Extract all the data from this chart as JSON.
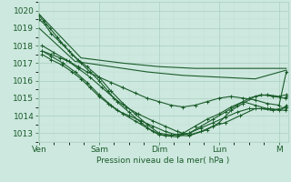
{
  "background_color": "#cde8df",
  "grid_color_major": "#aacfbf",
  "grid_color_minor": "#c0ddd5",
  "line_color": "#1a5c2a",
  "ylabel_text": "Pression niveau de la mer( hPa )",
  "x_ticks_labels": [
    "Ven",
    "Sam",
    "Dim",
    "Lun",
    "M"
  ],
  "x_ticks_pos": [
    0,
    1,
    2,
    3,
    4
  ],
  "ylim": [
    1012.5,
    1020.5
  ],
  "yticks": [
    1013,
    1014,
    1015,
    1016,
    1017,
    1018,
    1019,
    1020
  ],
  "xlim": [
    -0.02,
    4.15
  ],
  "figsize": [
    3.2,
    2.0
  ],
  "dpi": 100,
  "lines": [
    {
      "x": [
        0.0,
        0.7,
        1.4,
        2.0,
        2.6,
        3.2,
        3.8,
        4.12
      ],
      "y": [
        1019.8,
        1017.3,
        1017.0,
        1016.8,
        1016.7,
        1016.7,
        1016.7,
        1016.7
      ],
      "marker": false,
      "lw": 0.8
    },
    {
      "x": [
        0.0,
        0.6,
        1.2,
        1.8,
        2.4,
        3.0,
        3.6,
        4.12
      ],
      "y": [
        1019.0,
        1017.1,
        1016.8,
        1016.5,
        1016.3,
        1016.2,
        1016.1,
        1016.6
      ],
      "marker": false,
      "lw": 0.8
    },
    {
      "x": [
        0.05,
        0.2,
        0.35,
        0.5,
        0.65,
        0.8,
        1.0,
        1.2,
        1.4,
        1.6,
        1.8,
        2.0,
        2.2,
        2.4,
        2.6,
        2.8,
        3.0,
        3.2,
        3.4,
        3.6,
        3.8,
        4.0,
        4.12
      ],
      "y": [
        1017.7,
        1017.5,
        1017.3,
        1017.1,
        1016.8,
        1016.5,
        1016.2,
        1015.9,
        1015.6,
        1015.3,
        1015.0,
        1014.8,
        1014.6,
        1014.5,
        1014.6,
        1014.8,
        1015.0,
        1015.1,
        1015.0,
        1014.9,
        1014.7,
        1014.6,
        1016.5
      ],
      "marker": true,
      "lw": 0.8
    },
    {
      "x": [
        0.05,
        0.2,
        0.38,
        0.55,
        0.7,
        0.85,
        1.0,
        1.15,
        1.3,
        1.5,
        1.7,
        1.9,
        2.1,
        2.3,
        2.5,
        2.7,
        2.9,
        3.1,
        3.3,
        3.5,
        3.7,
        3.9,
        4.1,
        4.12
      ],
      "y": [
        1017.5,
        1017.2,
        1016.9,
        1016.5,
        1016.1,
        1015.6,
        1015.1,
        1014.7,
        1014.3,
        1014.0,
        1013.7,
        1013.4,
        1013.1,
        1012.9,
        1013.0,
        1013.3,
        1013.6,
        1013.9,
        1014.2,
        1014.4,
        1014.4,
        1014.3,
        1014.5,
        1014.6
      ],
      "marker": true,
      "lw": 0.8
    },
    {
      "x": [
        0.05,
        0.2,
        0.4,
        0.6,
        0.8,
        1.0,
        1.2,
        1.4,
        1.6,
        1.8,
        2.0,
        2.2,
        2.4,
        2.6,
        2.8,
        3.0,
        3.2,
        3.4,
        3.6,
        3.8,
        4.0,
        4.12
      ],
      "y": [
        1017.7,
        1017.4,
        1017.0,
        1016.5,
        1015.9,
        1015.2,
        1014.6,
        1014.1,
        1013.7,
        1013.3,
        1012.9,
        1012.85,
        1013.0,
        1013.4,
        1013.8,
        1014.1,
        1014.5,
        1014.8,
        1014.6,
        1014.4,
        1014.3,
        1014.5
      ],
      "marker": true,
      "lw": 0.8
    },
    {
      "x": [
        0.05,
        0.25,
        0.45,
        0.65,
        0.85,
        1.05,
        1.25,
        1.45,
        1.65,
        1.9,
        2.1,
        2.3,
        2.5,
        2.7,
        2.9,
        3.1,
        3.35,
        3.6,
        3.85,
        4.1,
        4.12
      ],
      "y": [
        1018.0,
        1017.6,
        1017.2,
        1016.7,
        1016.2,
        1015.6,
        1015.0,
        1014.5,
        1014.1,
        1013.7,
        1013.4,
        1013.1,
        1012.9,
        1013.1,
        1013.4,
        1013.6,
        1014.0,
        1014.4,
        1014.4,
        1014.3,
        1014.5
      ],
      "marker": true,
      "lw": 0.8
    },
    {
      "x": [
        0.0,
        0.1,
        0.2,
        0.35,
        0.5,
        0.65,
        0.8,
        1.0,
        1.2,
        1.4,
        1.6,
        1.8,
        2.0,
        2.2,
        2.5,
        2.8,
        3.0,
        3.2,
        3.4,
        3.6,
        3.8,
        4.0,
        4.12
      ],
      "y": [
        1019.5,
        1019.2,
        1018.7,
        1018.2,
        1017.7,
        1017.2,
        1016.8,
        1016.2,
        1015.4,
        1014.7,
        1014.1,
        1013.5,
        1013.0,
        1012.9,
        1012.85,
        1013.2,
        1013.6,
        1014.3,
        1014.7,
        1015.1,
        1015.2,
        1015.1,
        1015.2
      ],
      "marker": true,
      "lw": 0.8
    },
    {
      "x": [
        0.0,
        0.08,
        0.18,
        0.3,
        0.42,
        0.55,
        0.7,
        0.85,
        1.0,
        1.15,
        1.3,
        1.5,
        1.7,
        1.9,
        2.1,
        2.3,
        2.5,
        2.7,
        2.9,
        3.1,
        3.3,
        3.5,
        3.7,
        3.9,
        4.1,
        4.12
      ],
      "y": [
        1019.7,
        1019.4,
        1019.0,
        1018.5,
        1018.0,
        1017.5,
        1017.0,
        1016.5,
        1016.0,
        1015.4,
        1014.8,
        1014.2,
        1013.6,
        1013.1,
        1012.85,
        1012.8,
        1013.0,
        1013.4,
        1013.8,
        1014.2,
        1014.6,
        1015.0,
        1015.2,
        1015.1,
        1015.0,
        1015.1
      ],
      "marker": true,
      "lw": 0.8
    }
  ]
}
